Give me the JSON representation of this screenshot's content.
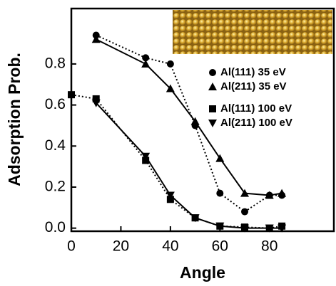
{
  "chart_data": {
    "type": "line",
    "x_label": "Angle",
    "y_label": "Adsorption Prob.",
    "x": [
      0,
      10,
      30,
      40,
      50,
      60,
      70,
      80,
      85
    ],
    "series": [
      {
        "name": "Al(111) 35 eV",
        "color": "#000000",
        "marker": "circle",
        "dash": "dotted",
        "values": [
          null,
          0.94,
          0.83,
          0.8,
          0.5,
          0.17,
          0.08,
          0.16,
          0.16
        ]
      },
      {
        "name": "Al(211) 35 eV",
        "color": "#000000",
        "marker": "triangle",
        "dash": "solid",
        "values": [
          null,
          0.92,
          0.8,
          0.68,
          0.52,
          0.34,
          0.17,
          0.16,
          0.17
        ]
      },
      {
        "name": "Al(111) 100 eV",
        "color": "#000000",
        "marker": "square",
        "dash": "dotted",
        "values": [
          0.65,
          0.63,
          0.33,
          0.14,
          0.05,
          0.01,
          0.005,
          0.0,
          0.01
        ]
      },
      {
        "name": "Al(211) 100 eV",
        "color": "#000000",
        "marker": "triangle-down",
        "dash": "solid",
        "values": [
          null,
          0.61,
          0.35,
          0.16,
          0.05,
          0.01,
          0.0,
          0.0,
          0.0
        ]
      }
    ],
    "xlim": [
      0,
      106
    ],
    "ylim": [
      -0.015,
      1.07
    ],
    "xticks": [
      0,
      20,
      40,
      60,
      80
    ],
    "yticks": [
      {
        "value": 0,
        "label": "0.0"
      },
      0.2,
      0.4,
      0.6,
      0.8
    ]
  }
}
